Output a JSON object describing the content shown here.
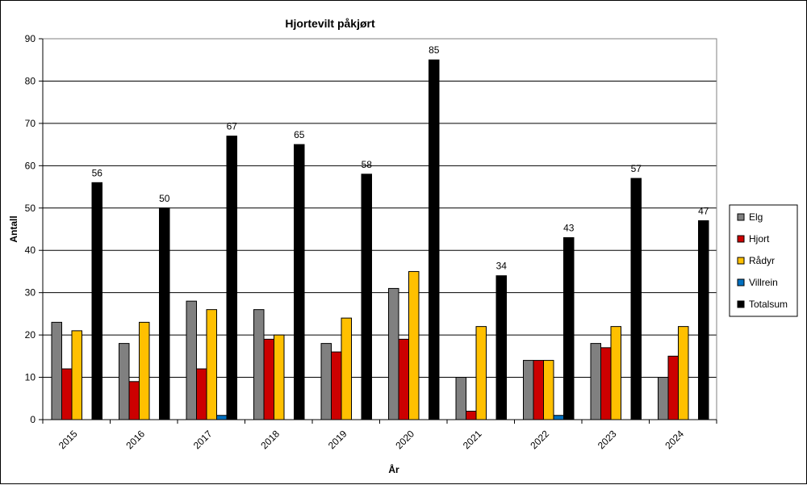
{
  "chart_data": {
    "type": "bar",
    "title": "Hjortevilt påkjørt",
    "xlabel": "År",
    "ylabel": "Antall",
    "ylim": [
      0,
      90
    ],
    "yticks": [
      0,
      10,
      20,
      30,
      40,
      50,
      60,
      70,
      80,
      90
    ],
    "grid": true,
    "legend_position": "right",
    "categories": [
      "2015",
      "2016",
      "2017",
      "2018",
      "2019",
      "2020",
      "2021",
      "2022",
      "2023",
      "2024"
    ],
    "series": [
      {
        "name": "Elg",
        "color": "#808080",
        "values": [
          23,
          18,
          28,
          26,
          18,
          31,
          10,
          14,
          18,
          10
        ]
      },
      {
        "name": "Hjort",
        "color": "#cc0000",
        "values": [
          12,
          9,
          12,
          19,
          16,
          19,
          2,
          14,
          17,
          15
        ]
      },
      {
        "name": "Rådyr",
        "color": "#ffc000",
        "values": [
          21,
          23,
          26,
          20,
          24,
          35,
          22,
          14,
          22,
          22
        ]
      },
      {
        "name": "Villrein",
        "color": "#0070c0",
        "values": [
          0,
          0,
          1,
          0,
          0,
          0,
          0,
          1,
          0,
          0
        ]
      },
      {
        "name": "Totalsum",
        "color": "#000000",
        "values": [
          56,
          50,
          67,
          65,
          58,
          85,
          34,
          43,
          57,
          47
        ],
        "data_labels": true
      }
    ]
  }
}
